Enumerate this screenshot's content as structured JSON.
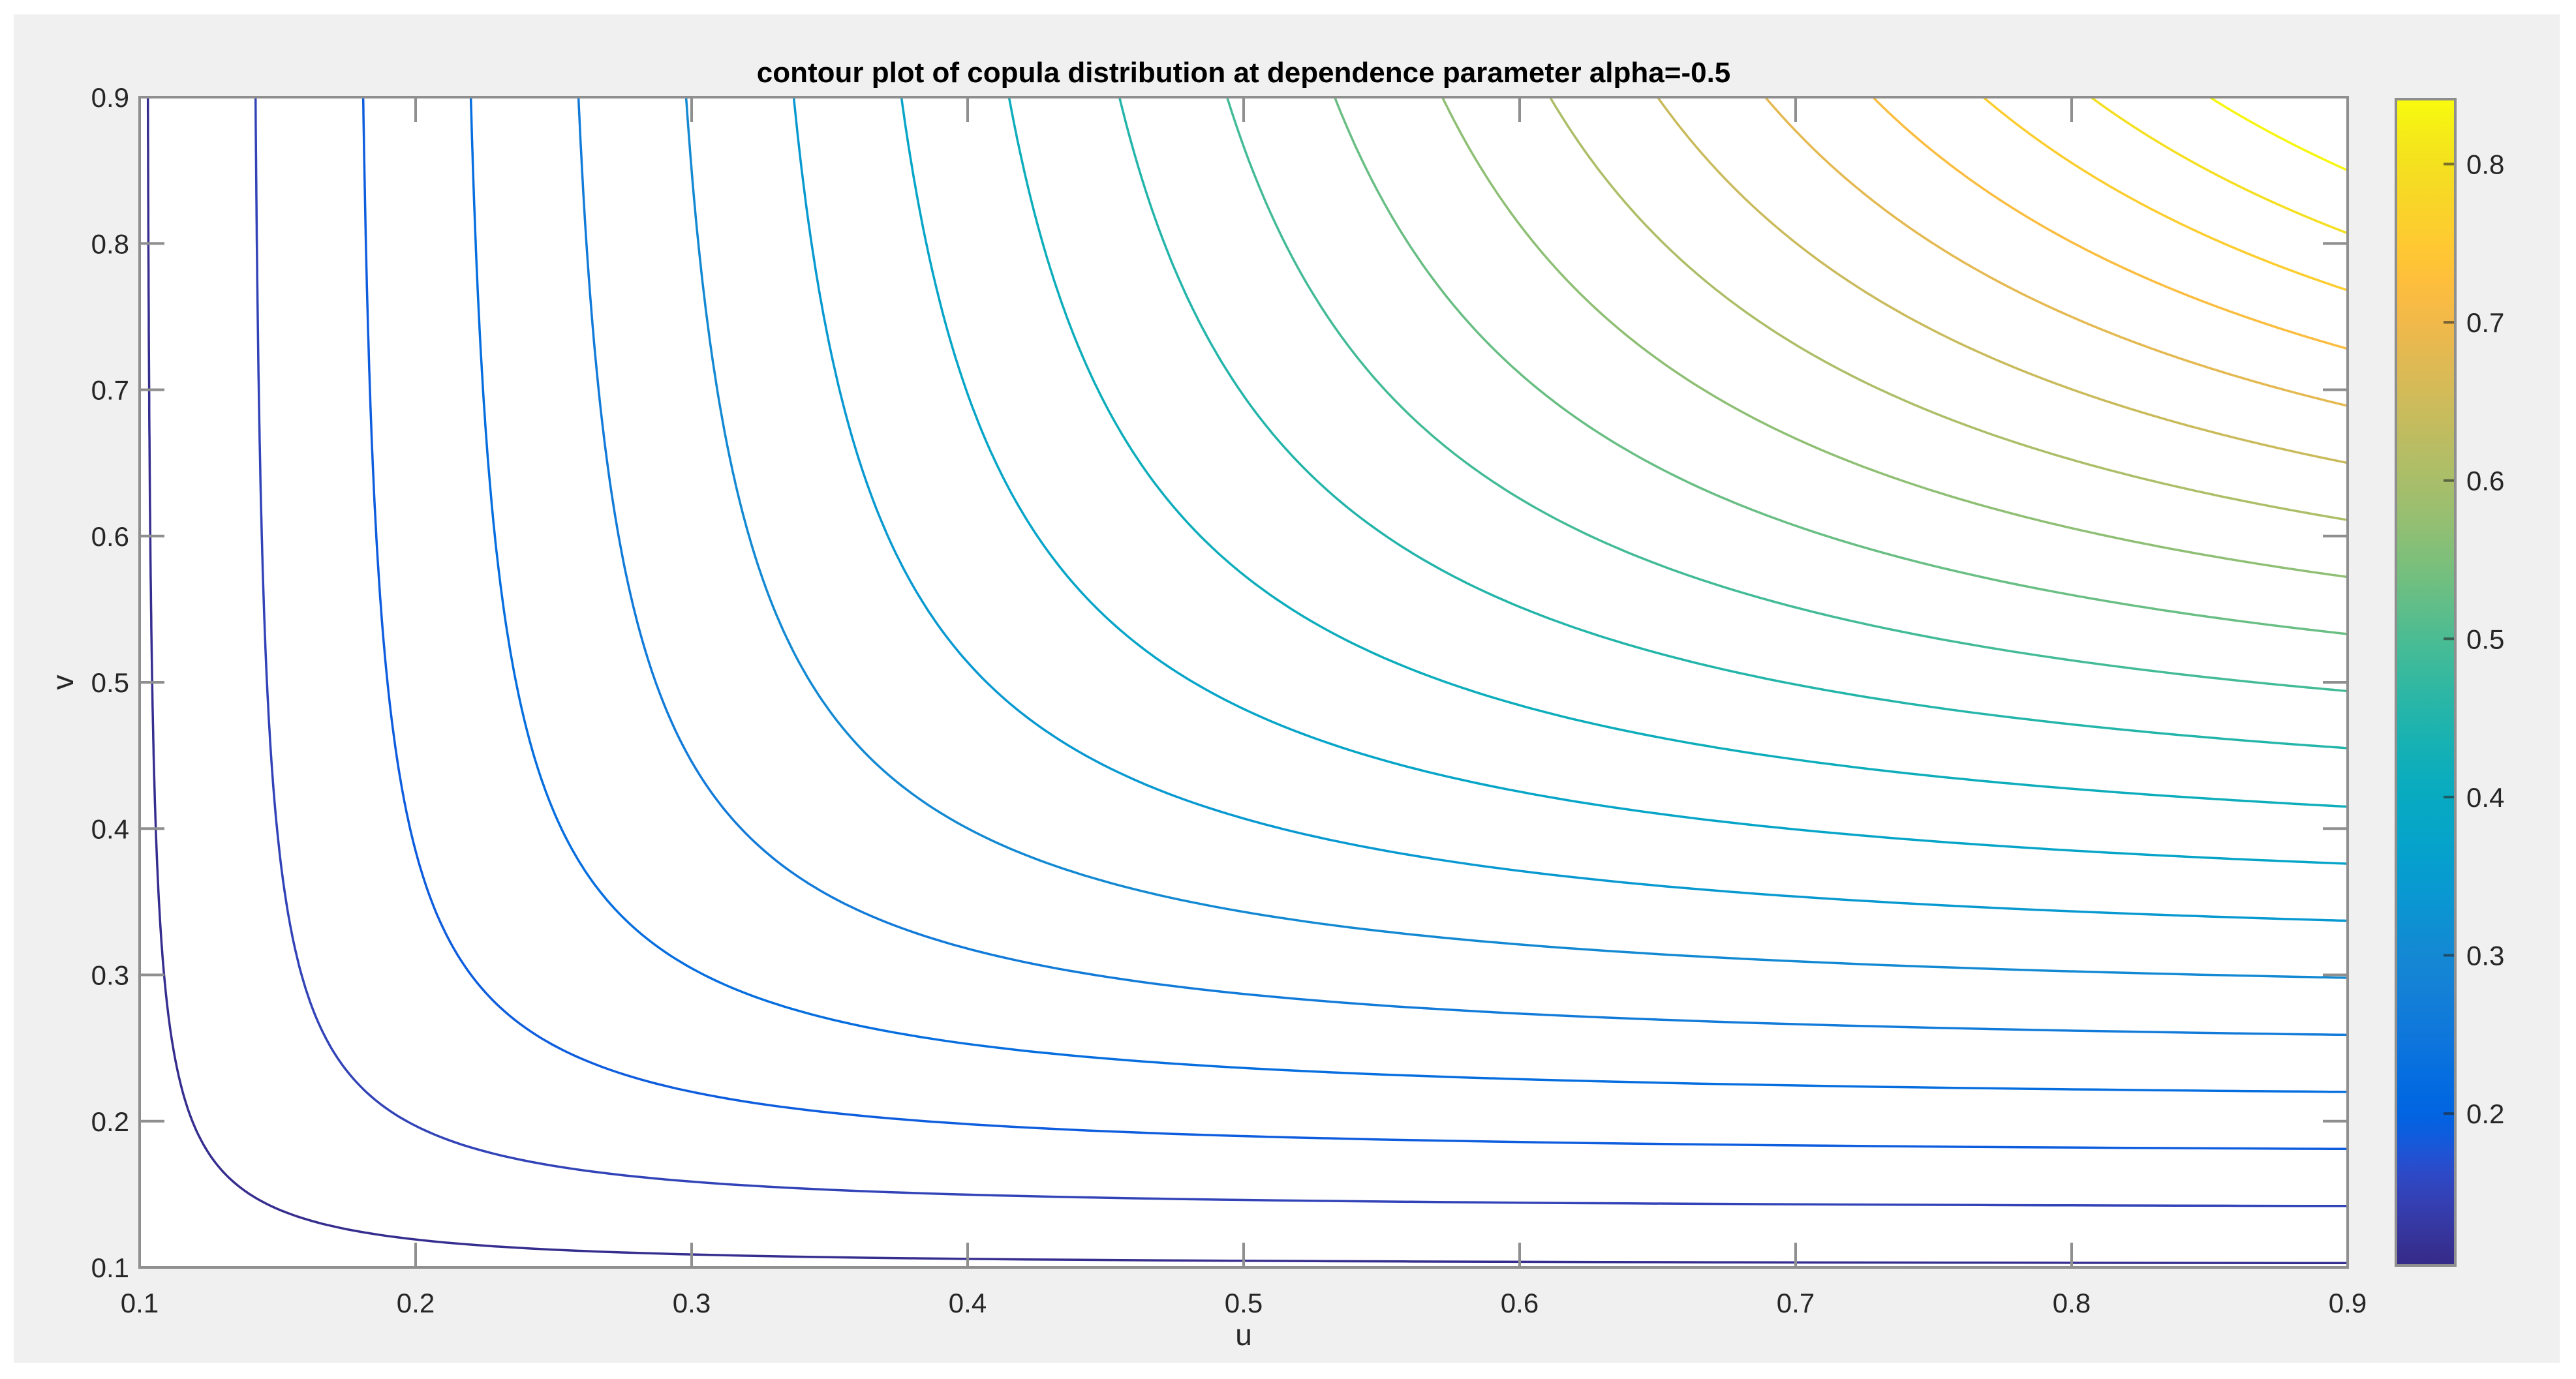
{
  "figure": {
    "background": "#f0f0f0",
    "axes_color": "#8f8f8f",
    "tick_label_color": "#262626"
  },
  "chart_data": {
    "type": "contour",
    "title": "contour plot of copula distribution at dependence parameter alpha=-0.5",
    "xlabel": "u",
    "ylabel": "v",
    "xlim": [
      0.1,
      0.9
    ],
    "ylim": [
      0.1,
      0.9
    ],
    "xticks": [
      "0.1",
      "0.2",
      "0.3",
      "0.4",
      "0.5",
      "0.6",
      "0.7",
      "0.8",
      "0.9"
    ],
    "yticks": [
      "0.1",
      "0.2",
      "0.3",
      "0.4",
      "0.5",
      "0.6",
      "0.7",
      "0.8",
      "0.9"
    ],
    "grid": false,
    "colormap": "parula",
    "colorbar": {
      "position": "right",
      "range": [
        0.104,
        0.841
      ],
      "ticks": [
        "0.2",
        "0.3",
        "0.4",
        "0.5",
        "0.6",
        "0.7",
        "0.8"
      ]
    },
    "contour_edge_crossings_note": "v where each contour meets u=0.9 (symmetric: same u where it meets v=0.9)",
    "contour_edge_crossings": [
      0.103,
      0.142,
      0.181,
      0.22,
      0.259,
      0.298,
      0.337,
      0.376,
      0.415,
      0.455,
      0.494,
      0.533,
      0.572,
      0.611,
      0.65,
      0.689,
      0.728,
      0.768,
      0.807,
      0.85
    ],
    "contour_diagonal_points": [
      {
        "level_index": 0,
        "u": 0.145,
        "v": 0.145
      },
      {
        "level_index": 1,
        "u": 0.196,
        "v": 0.196
      },
      {
        "level_index": 13,
        "u": 0.7,
        "v": 0.7
      },
      {
        "level_index": 19,
        "u": 0.87,
        "v": 0.87
      }
    ]
  }
}
